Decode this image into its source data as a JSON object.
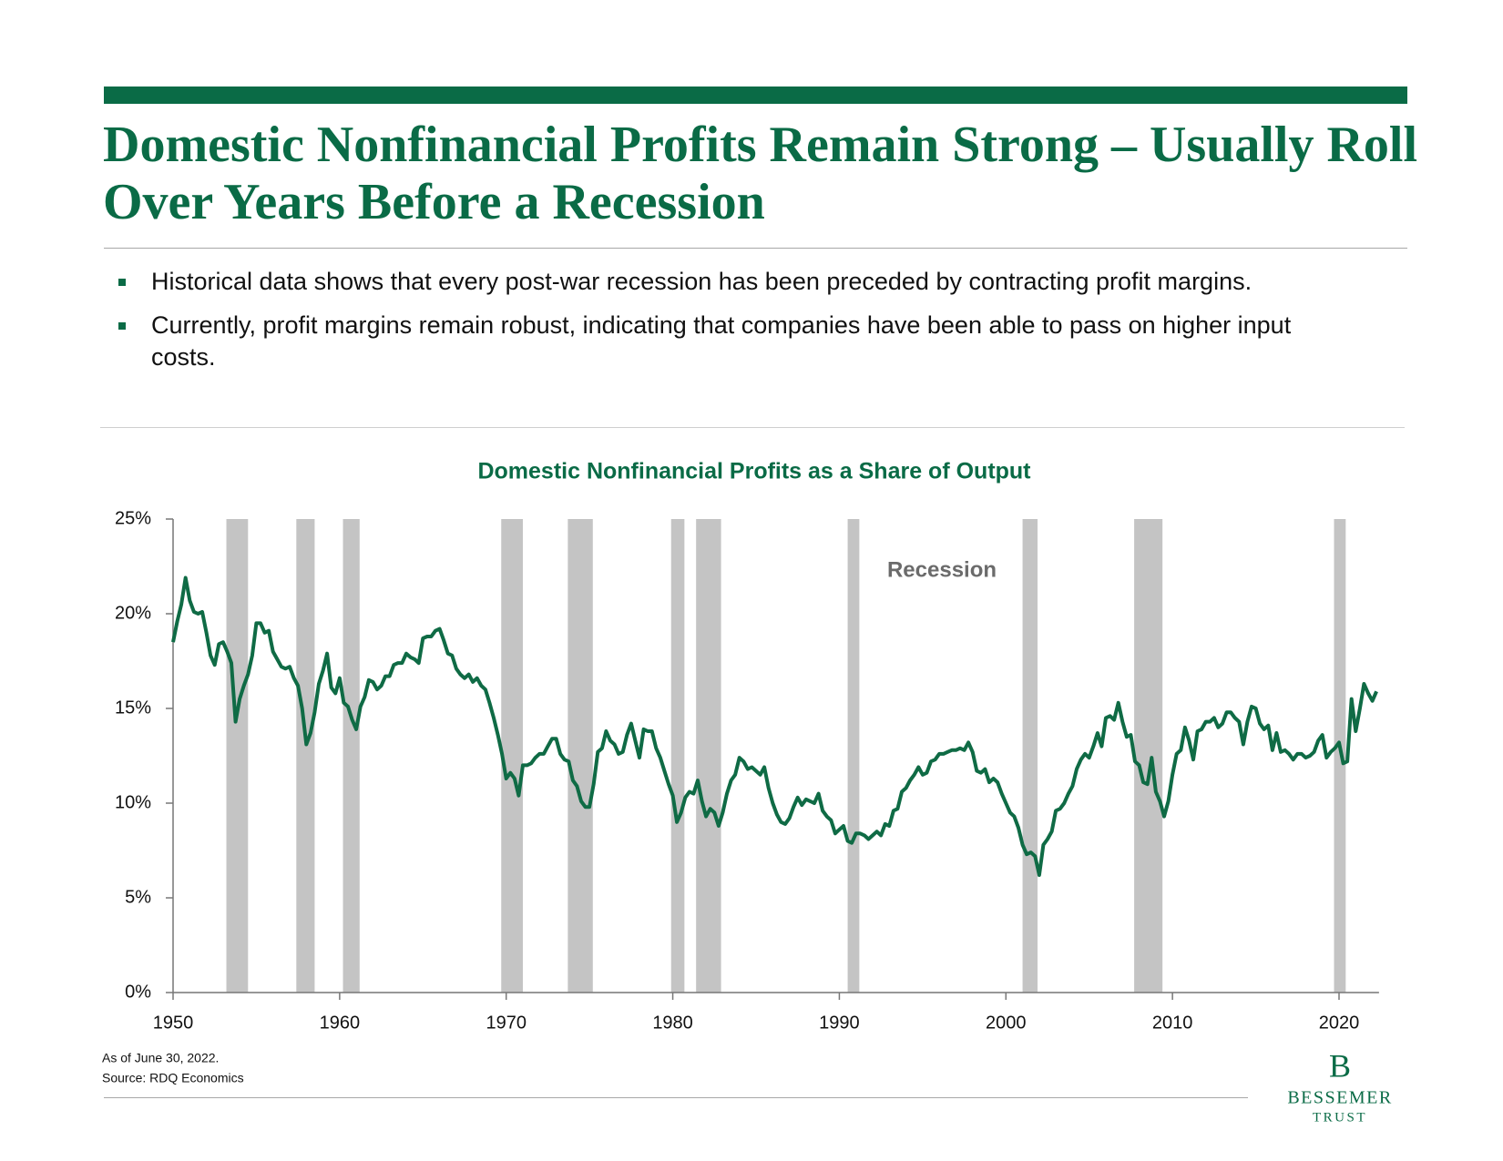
{
  "header": {
    "title": "Domestic Nonfinancial Profits Remain Strong – Usually Roll Over Years Before a Recession",
    "bullets": [
      "Historical data shows that every post-war recession has been preceded by contracting profit margins.",
      "Currently, profit margins remain robust, indicating that companies have been able to pass on higher input costs."
    ]
  },
  "chart_data": {
    "type": "line",
    "title": "Domestic Nonfinancial Profits as a Share of Output",
    "color": "#0f6b45",
    "band_color": "#c4c4c4",
    "annotation": "Recession",
    "xlim": [
      1950,
      2022.4
    ],
    "xticks": [
      1950,
      1960,
      1970,
      1980,
      1990,
      2000,
      2010,
      2020
    ],
    "ylim": [
      0,
      25
    ],
    "yticks": [
      {
        "value": 0,
        "label": "0%"
      },
      {
        "value": 5,
        "label": "5%"
      },
      {
        "value": 10,
        "label": "10%"
      },
      {
        "value": 15,
        "label": "15%"
      },
      {
        "value": 20,
        "label": "20%"
      },
      {
        "value": 25,
        "label": "25%"
      }
    ],
    "recessions": [
      [
        1953.2,
        1954.5
      ],
      [
        1957.4,
        1958.5
      ],
      [
        1960.2,
        1961.2
      ],
      [
        1969.7,
        1971.0
      ],
      [
        1973.7,
        1975.2
      ],
      [
        1979.9,
        1980.7
      ],
      [
        1981.4,
        1982.9
      ],
      [
        1990.5,
        1991.2
      ],
      [
        2001.0,
        2001.9
      ],
      [
        2007.7,
        2009.4
      ],
      [
        2019.7,
        2020.4
      ]
    ],
    "x": [
      1950,
      1950.25,
      1950.5,
      1950.75,
      1951,
      1951.25,
      1951.5,
      1951.75,
      1952,
      1952.25,
      1952.5,
      1952.75,
      1953,
      1953.25,
      1953.5,
      1953.75,
      1954,
      1954.25,
      1954.5,
      1954.75,
      1955,
      1955.25,
      1955.5,
      1955.75,
      1956,
      1956.25,
      1956.5,
      1956.75,
      1957,
      1957.25,
      1957.5,
      1957.75,
      1958,
      1958.25,
      1958.5,
      1958.75,
      1959,
      1959.25,
      1959.5,
      1959.75,
      1960,
      1960.25,
      1960.5,
      1960.75,
      1961,
      1961.25,
      1961.5,
      1961.75,
      1962,
      1962.25,
      1962.5,
      1962.75,
      1963,
      1963.25,
      1963.5,
      1963.75,
      1964,
      1964.25,
      1964.5,
      1964.75,
      1965,
      1965.25,
      1965.5,
      1965.75,
      1966,
      1966.25,
      1966.5,
      1966.75,
      1967,
      1967.25,
      1967.5,
      1967.75,
      1968,
      1968.25,
      1968.5,
      1968.75,
      1969,
      1969.25,
      1969.5,
      1969.75,
      1970,
      1970.25,
      1970.5,
      1970.75,
      1971,
      1971.25,
      1971.5,
      1971.75,
      1972,
      1972.25,
      1972.5,
      1972.75,
      1973,
      1973.25,
      1973.5,
      1973.75,
      1974,
      1974.25,
      1974.5,
      1974.75,
      1975,
      1975.25,
      1975.5,
      1975.75,
      1976,
      1976.25,
      1976.5,
      1976.75,
      1977,
      1977.25,
      1977.5,
      1977.75,
      1978,
      1978.25,
      1978.5,
      1978.75,
      1979,
      1979.25,
      1979.5,
      1979.75,
      1980,
      1980.25,
      1980.5,
      1980.75,
      1981,
      1981.25,
      1981.5,
      1981.75,
      1982,
      1982.25,
      1982.5,
      1982.75,
      1983,
      1983.25,
      1983.5,
      1983.75,
      1984,
      1984.25,
      1984.5,
      1984.75,
      1985,
      1985.25,
      1985.5,
      1985.75,
      1986,
      1986.25,
      1986.5,
      1986.75,
      1987,
      1987.25,
      1987.5,
      1987.75,
      1988,
      1988.25,
      1988.5,
      1988.75,
      1989,
      1989.25,
      1989.5,
      1989.75,
      1990,
      1990.25,
      1990.5,
      1990.75,
      1991,
      1991.25,
      1991.5,
      1991.75,
      1992,
      1992.25,
      1992.5,
      1992.75,
      1993,
      1993.25,
      1993.5,
      1993.75,
      1994,
      1994.25,
      1994.5,
      1994.75,
      1995,
      1995.25,
      1995.5,
      1995.75,
      1996,
      1996.25,
      1996.5,
      1996.75,
      1997,
      1997.25,
      1997.5,
      1997.75,
      1998,
      1998.25,
      1998.5,
      1998.75,
      1999,
      1999.25,
      1999.5,
      1999.75,
      2000,
      2000.25,
      2000.5,
      2000.75,
      2001,
      2001.25,
      2001.5,
      2001.75,
      2002,
      2002.25,
      2002.5,
      2002.75,
      2003,
      2003.25,
      2003.5,
      2003.75,
      2004,
      2004.25,
      2004.5,
      2004.75,
      2005,
      2005.25,
      2005.5,
      2005.75,
      2006,
      2006.25,
      2006.5,
      2006.75,
      2007,
      2007.25,
      2007.5,
      2007.75,
      2008,
      2008.25,
      2008.5,
      2008.75,
      2009,
      2009.25,
      2009.5,
      2009.75,
      2010,
      2010.25,
      2010.5,
      2010.75,
      2011,
      2011.25,
      2011.5,
      2011.75,
      2012,
      2012.25,
      2012.5,
      2012.75,
      2013,
      2013.25,
      2013.5,
      2013.75,
      2014,
      2014.25,
      2014.5,
      2014.75,
      2015,
      2015.25,
      2015.5,
      2015.75,
      2016,
      2016.25,
      2016.5,
      2016.75,
      2017,
      2017.25,
      2017.5,
      2017.75,
      2018,
      2018.25,
      2018.5,
      2018.75,
      2019,
      2019.25,
      2019.5,
      2019.75,
      2020,
      2020.25,
      2020.5,
      2020.75,
      2021,
      2021.25,
      2021.5,
      2021.75,
      2022,
      2022.25
    ],
    "values": [
      18.5,
      19.6,
      20.5,
      21.9,
      20.7,
      20.1,
      20.0,
      20.1,
      19.0,
      17.8,
      17.3,
      18.4,
      18.5,
      18.0,
      17.4,
      14.3,
      15.5,
      16.2,
      16.8,
      17.8,
      19.5,
      19.5,
      19.0,
      19.1,
      18.0,
      17.6,
      17.2,
      17.1,
      17.2,
      16.6,
      16.2,
      15.0,
      13.1,
      13.7,
      14.8,
      16.3,
      17.0,
      17.9,
      16.1,
      15.8,
      16.6,
      15.3,
      15.1,
      14.4,
      13.9,
      15.1,
      15.6,
      16.5,
      16.4,
      16.0,
      16.2,
      16.7,
      16.7,
      17.3,
      17.4,
      17.4,
      17.9,
      17.7,
      17.6,
      17.4,
      18.7,
      18.8,
      18.8,
      19.1,
      19.2,
      18.6,
      17.9,
      17.8,
      17.1,
      16.8,
      16.6,
      16.8,
      16.4,
      16.6,
      16.2,
      16.0,
      15.3,
      14.5,
      13.6,
      12.6,
      11.3,
      11.6,
      11.3,
      10.4,
      12.0,
      12.0,
      12.1,
      12.4,
      12.6,
      12.6,
      13.0,
      13.4,
      13.4,
      12.6,
      12.3,
      12.2,
      11.2,
      10.9,
      10.1,
      9.8,
      9.8,
      11.0,
      12.7,
      12.9,
      13.8,
      13.3,
      13.1,
      12.6,
      12.7,
      13.6,
      14.2,
      13.3,
      12.4,
      13.9,
      13.8,
      13.8,
      12.9,
      12.4,
      11.7,
      11.0,
      10.4,
      9.0,
      9.5,
      10.3,
      10.6,
      10.5,
      11.2,
      10.1,
      9.3,
      9.7,
      9.5,
      8.8,
      9.5,
      10.5,
      11.2,
      11.5,
      12.4,
      12.2,
      11.8,
      11.9,
      11.7,
      11.5,
      11.9,
      10.8,
      10.0,
      9.4,
      9.0,
      8.9,
      9.2,
      9.8,
      10.3,
      9.9,
      10.2,
      10.1,
      10.0,
      10.5,
      9.6,
      9.3,
      9.1,
      8.4,
      8.6,
      8.8,
      8.0,
      7.9,
      8.4,
      8.4,
      8.3,
      8.1,
      8.3,
      8.5,
      8.3,
      8.9,
      8.8,
      9.6,
      9.7,
      10.6,
      10.8,
      11.2,
      11.5,
      11.9,
      11.5,
      11.6,
      12.2,
      12.3,
      12.6,
      12.6,
      12.7,
      12.8,
      12.8,
      12.9,
      12.8,
      13.2,
      12.7,
      11.7,
      11.6,
      11.8,
      11.1,
      11.3,
      11.1,
      10.5,
      10.0,
      9.5,
      9.3,
      8.7,
      7.8,
      7.3,
      7.4,
      7.2,
      6.2,
      7.8,
      8.1,
      8.5,
      9.6,
      9.7,
      10.0,
      10.5,
      10.9,
      11.8,
      12.3,
      12.6,
      12.4,
      13.0,
      13.7,
      13.0,
      14.5,
      14.6,
      14.4,
      15.3,
      14.3,
      13.5,
      13.6,
      12.2,
      12.0,
      11.1,
      11.0,
      12.4,
      10.6,
      10.1,
      9.3,
      10.1,
      11.5,
      12.6,
      12.8,
      14.0,
      13.3,
      12.3,
      13.8,
      13.9,
      14.3,
      14.3,
      14.5,
      14.0,
      14.2,
      14.8,
      14.8,
      14.5,
      14.3,
      13.1,
      14.3,
      15.1,
      15.0,
      14.2,
      13.9,
      14.1,
      12.8,
      13.7,
      12.7,
      12.8,
      12.6,
      12.3,
      12.6,
      12.6,
      12.4,
      12.5,
      12.7,
      13.3,
      13.6,
      12.4,
      12.7,
      12.9,
      13.2,
      12.1,
      12.2,
      15.5,
      13.8,
      15.0,
      16.3,
      15.8,
      15.4,
      15.9
    ],
    "footnotes": [
      "As of June 30, 2022.",
      "Source: RDQ Economics"
    ]
  },
  "logo": {
    "mark": "B",
    "name": "BESSEMER",
    "sub": "TRUST"
  }
}
